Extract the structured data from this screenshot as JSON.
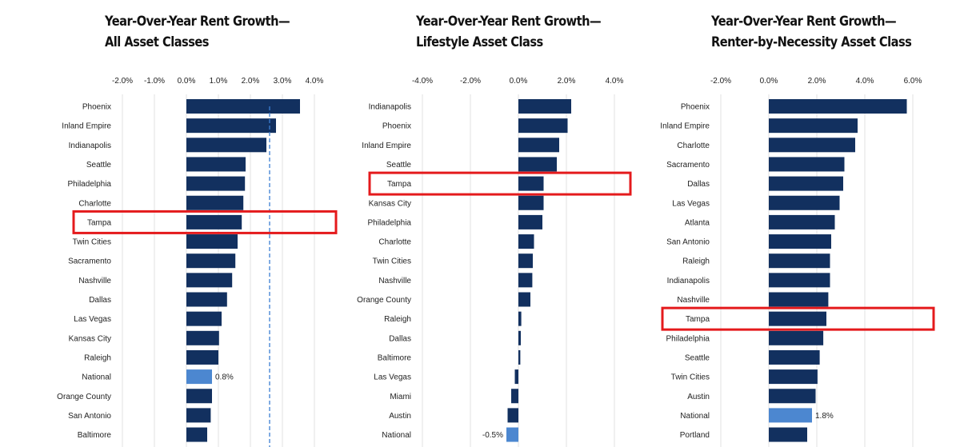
{
  "colors": {
    "bar": "#12305f",
    "highlight_bar": "#4c87d0",
    "grid": "#e2e2e2",
    "average_line": "#3b7ed3",
    "highlight_box": "#e41a1c",
    "text": "#222222"
  },
  "chart_data": [
    {
      "type": "bar",
      "orientation": "horizontal",
      "title_lines": [
        "Year-Over-Year Rent Growth—",
        "All Asset Classes"
      ],
      "xlim": [
        -2.0,
        4.0
      ],
      "ticks": [
        -2.0,
        -1.0,
        0.0,
        1.0,
        2.0,
        3.0,
        4.0
      ],
      "tick_labels": [
        "-2.0%",
        "-1.0%",
        "0.0%",
        "1.0%",
        "2.0%",
        "3.0%",
        "4.0%"
      ],
      "grid": true,
      "reference_line": 2.6,
      "categories": [
        "Phoenix",
        "Inland Empire",
        "Indianapolis",
        "Seattle",
        "Philadelphia",
        "Charlotte",
        "Tampa",
        "Twin Cities",
        "Sacramento",
        "Nashville",
        "Dallas",
        "Las Vegas",
        "Kansas City",
        "Raleigh",
        "National",
        "Orange County",
        "San Antonio",
        "Baltimore"
      ],
      "values": [
        3.55,
        2.8,
        2.5,
        1.85,
        1.83,
        1.78,
        1.73,
        1.6,
        1.53,
        1.43,
        1.27,
        1.1,
        1.02,
        1.0,
        0.8,
        0.8,
        0.76,
        0.65
      ],
      "highlight_category": "National",
      "data_labels": [
        {
          "category": "National",
          "text": "0.8%"
        }
      ],
      "boxed_category": "Tampa"
    },
    {
      "type": "bar",
      "orientation": "horizontal",
      "title_lines": [
        "Year-Over-Year Rent Growth—",
        "Lifestyle Asset Class"
      ],
      "xlim": [
        -4.0,
        4.0
      ],
      "ticks": [
        -4.0,
        -2.0,
        0.0,
        2.0,
        4.0
      ],
      "tick_labels": [
        "-4.0%",
        "-2.0%",
        "0.0%",
        "2.0%",
        "4.0%"
      ],
      "grid": true,
      "categories": [
        "Indianapolis",
        "Phoenix",
        "Inland Empire",
        "Seattle",
        "Tampa",
        "Kansas City",
        "Philadelphia",
        "Charlotte",
        "Twin Cities",
        "Nashville",
        "Orange County",
        "Raleigh",
        "Dallas",
        "Baltimore",
        "Las Vegas",
        "Miami",
        "Austin",
        "National"
      ],
      "values": [
        2.2,
        2.05,
        1.7,
        1.6,
        1.05,
        1.05,
        1.0,
        0.65,
        0.6,
        0.58,
        0.5,
        0.12,
        0.1,
        0.08,
        -0.15,
        -0.3,
        -0.45,
        -0.5
      ],
      "highlight_category": "National",
      "data_labels": [
        {
          "category": "National",
          "text": "-0.5%"
        }
      ],
      "boxed_category": "Tampa"
    },
    {
      "type": "bar",
      "orientation": "horizontal",
      "title_lines": [
        "Year-Over-Year Rent Growth—",
        "Renter-by-Necessity Asset Class"
      ],
      "xlim": [
        -2.0,
        6.0
      ],
      "ticks": [
        -2.0,
        0.0,
        2.0,
        4.0,
        6.0
      ],
      "tick_labels": [
        "-2.0%",
        "0.0%",
        "2.0%",
        "4.0%",
        "6.0%"
      ],
      "grid": true,
      "categories": [
        "Phoenix",
        "Inland Empire",
        "Charlotte",
        "Sacramento",
        "Dallas",
        "Las Vegas",
        "Atlanta",
        "San Antonio",
        "Raleigh",
        "Indianapolis",
        "Nashville",
        "Tampa",
        "Philadelphia",
        "Seattle",
        "Twin Cities",
        "Austin",
        "National",
        "Portland"
      ],
      "values": [
        5.75,
        3.7,
        3.6,
        3.15,
        3.1,
        2.95,
        2.75,
        2.6,
        2.55,
        2.55,
        2.48,
        2.4,
        2.27,
        2.12,
        2.03,
        1.95,
        1.8,
        1.6
      ],
      "highlight_category": "National",
      "data_labels": [
        {
          "category": "National",
          "text": "1.8%"
        }
      ],
      "boxed_category": "Tampa"
    }
  ]
}
